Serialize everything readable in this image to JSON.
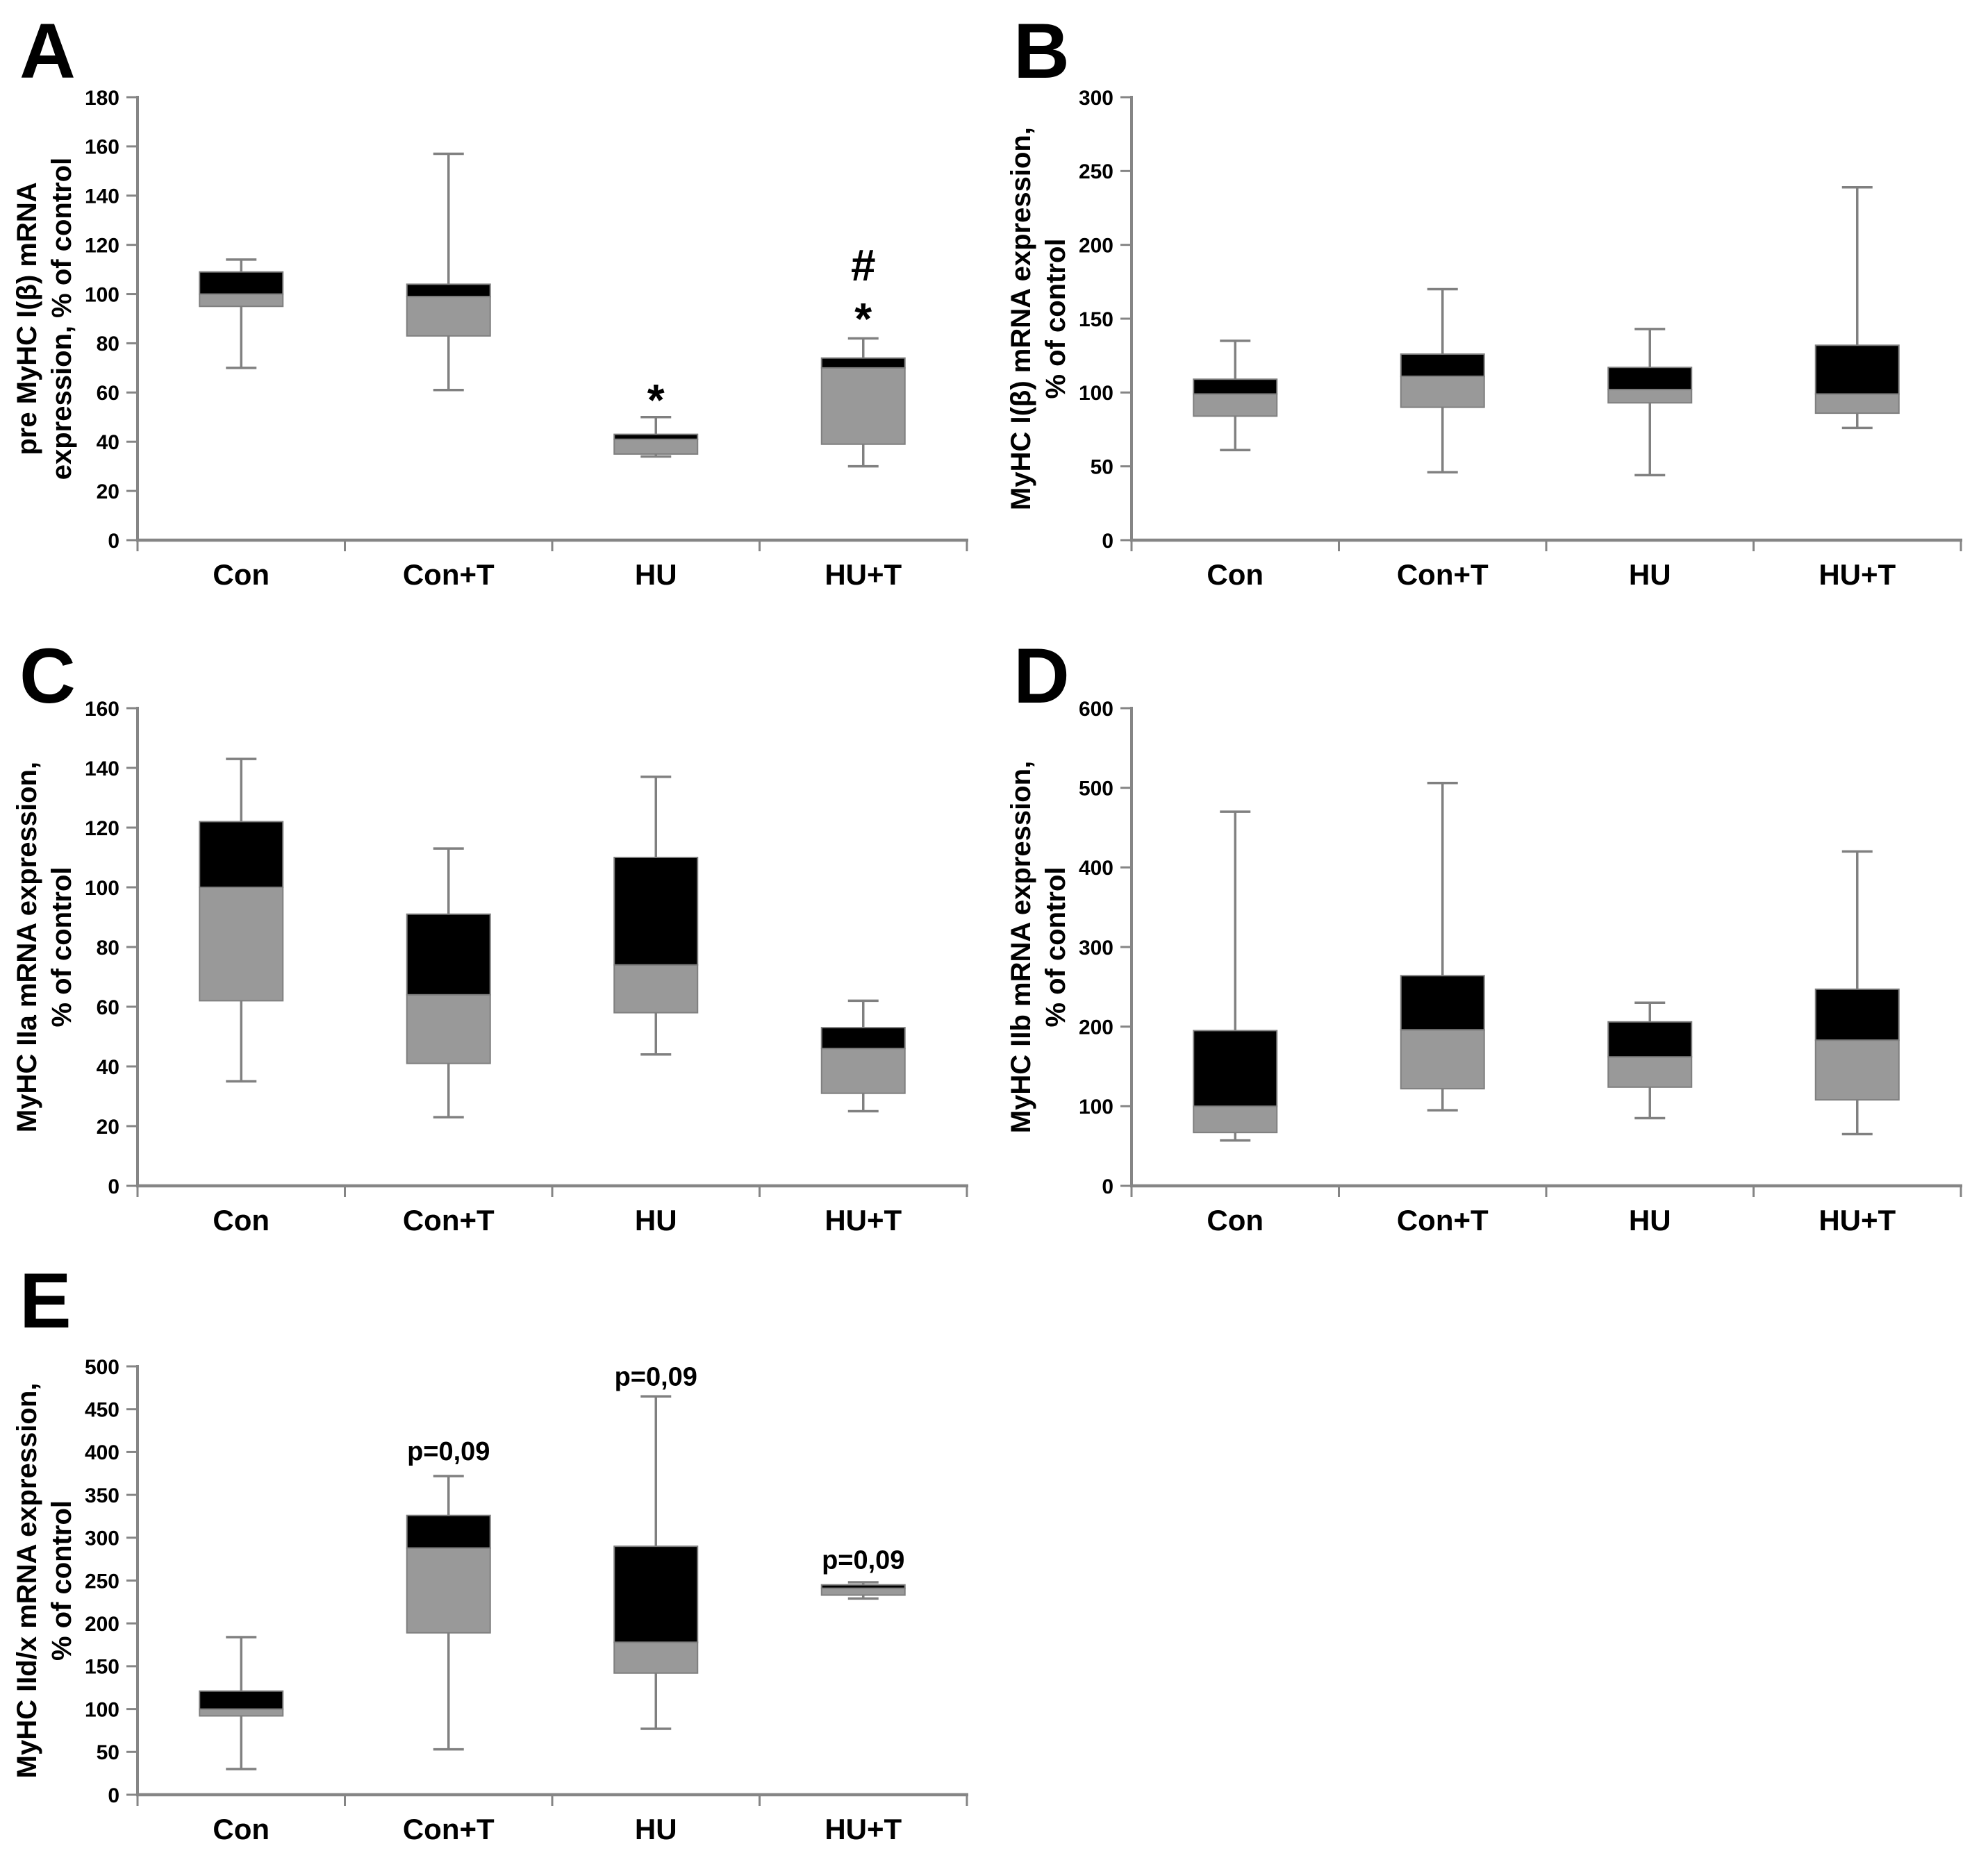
{
  "figure": {
    "background": "#ffffff",
    "colors": {
      "box_upper_fill": "#000000",
      "box_lower_fill": "#999999",
      "box_outline": "#7f7f7f",
      "whisker": "#808080",
      "axis": "#858585",
      "text": "#000000"
    }
  },
  "chart_data": [
    {
      "type": "box",
      "panel": "A",
      "ylabel": "pre MyHC I(β) mRNA expression, % of control",
      "ylabel_lines": [
        "pre MyHC I(β) mRNA",
        "expression, % of control"
      ],
      "ylim": [
        0,
        180
      ],
      "ystep": 20,
      "yticks": [
        "0",
        "20",
        "40",
        "60",
        "80",
        "100",
        "120",
        "140",
        "160",
        "180"
      ],
      "grid": false,
      "categories": [
        "Con",
        "Con+T",
        "HU",
        "HU+T"
      ],
      "boxes": [
        {
          "category": "Con",
          "whisker_low": 70,
          "q1": 95,
          "median": 100,
          "q3": 109,
          "whisker_high": 114
        },
        {
          "category": "Con+T",
          "whisker_low": 61,
          "q1": 83,
          "median": 99,
          "q3": 104,
          "whisker_high": 157
        },
        {
          "category": "HU",
          "whisker_low": 34,
          "q1": 35,
          "median": 41,
          "q3": 43,
          "whisker_high": 50
        },
        {
          "category": "HU+T",
          "whisker_low": 30,
          "q1": 39,
          "median": 70,
          "q3": 74,
          "whisker_high": 82
        }
      ],
      "annotations": [
        {
          "text": "*",
          "category": "HU",
          "y_value": 60,
          "font_size": 64
        },
        {
          "text": "#",
          "category": "HU+T",
          "y_value": 112,
          "font_size": 64
        },
        {
          "text": "*",
          "category": "HU+T",
          "y_value": 93,
          "font_size": 64
        }
      ]
    },
    {
      "type": "box",
      "panel": "B",
      "ylabel": "MyHC I(β) mRNA expression, % of control",
      "ylabel_lines": [
        "MyHC I(β) mRNA expression,",
        "% of control"
      ],
      "ylim": [
        0,
        300
      ],
      "ystep": 50,
      "yticks": [
        "0",
        "50",
        "100",
        "150",
        "200",
        "250",
        "300"
      ],
      "grid": false,
      "categories": [
        "Con",
        "Con+T",
        "HU",
        "HU+T"
      ],
      "boxes": [
        {
          "category": "Con",
          "whisker_low": 61,
          "q1": 84,
          "median": 99,
          "q3": 109,
          "whisker_high": 135
        },
        {
          "category": "Con+T",
          "whisker_low": 46,
          "q1": 90,
          "median": 111,
          "q3": 126,
          "whisker_high": 170
        },
        {
          "category": "HU",
          "whisker_low": 44,
          "q1": 93,
          "median": 102,
          "q3": 117,
          "whisker_high": 143
        },
        {
          "category": "HU+T",
          "whisker_low": 76,
          "q1": 86,
          "median": 99,
          "q3": 132,
          "whisker_high": 239
        }
      ],
      "annotations": []
    },
    {
      "type": "box",
      "panel": "C",
      "ylabel": "MyHC IIa mRNA expression, % of control",
      "ylabel_lines": [
        "MyHC IIa mRNA expression,",
        "% of control"
      ],
      "ylim": [
        0,
        160
      ],
      "ystep": 20,
      "yticks": [
        "0",
        "20",
        "40",
        "60",
        "80",
        "100",
        "120",
        "140",
        "160"
      ],
      "grid": false,
      "categories": [
        "Con",
        "Con+T",
        "HU",
        "HU+T"
      ],
      "boxes": [
        {
          "category": "Con",
          "whisker_low": 35,
          "q1": 62,
          "median": 100,
          "q3": 122,
          "whisker_high": 143
        },
        {
          "category": "Con+T",
          "whisker_low": 23,
          "q1": 41,
          "median": 64,
          "q3": 91,
          "whisker_high": 113
        },
        {
          "category": "HU",
          "whisker_low": 44,
          "q1": 58,
          "median": 74,
          "q3": 110,
          "whisker_high": 137
        },
        {
          "category": "HU+T",
          "whisker_low": 25,
          "q1": 31,
          "median": 46,
          "q3": 53,
          "whisker_high": 62
        }
      ],
      "annotations": []
    },
    {
      "type": "box",
      "panel": "D",
      "ylabel": "MyHC IIb mRNA expression, % of control",
      "ylabel_lines": [
        "MyHC IIb mRNA expression,",
        "% of control"
      ],
      "ylim": [
        0,
        600
      ],
      "ystep": 100,
      "yticks": [
        "0",
        "100",
        "200",
        "300",
        "400",
        "500",
        "600"
      ],
      "grid": false,
      "categories": [
        "Con",
        "Con+T",
        "HU",
        "HU+T"
      ],
      "boxes": [
        {
          "category": "Con",
          "whisker_low": 57,
          "q1": 67,
          "median": 100,
          "q3": 195,
          "whisker_high": 470
        },
        {
          "category": "Con+T",
          "whisker_low": 95,
          "q1": 122,
          "median": 196,
          "q3": 264,
          "whisker_high": 506
        },
        {
          "category": "HU",
          "whisker_low": 85,
          "q1": 124,
          "median": 162,
          "q3": 206,
          "whisker_high": 230
        },
        {
          "category": "HU+T",
          "whisker_low": 65,
          "q1": 108,
          "median": 183,
          "q3": 247,
          "whisker_high": 420
        }
      ],
      "annotations": []
    },
    {
      "type": "box",
      "panel": "E",
      "ylabel": "MyHC IId/x mRNA expression, % of control",
      "ylabel_lines": [
        "MyHC IId/x  mRNA expression,",
        "% of control"
      ],
      "ylim": [
        0,
        500
      ],
      "ystep": 50,
      "yticks": [
        "0",
        "50",
        "100",
        "150",
        "200",
        "250",
        "300",
        "350",
        "400",
        "450",
        "500"
      ],
      "grid": false,
      "categories": [
        "Con",
        "Con+T",
        "HU",
        "HU+T"
      ],
      "boxes": [
        {
          "category": "Con",
          "whisker_low": 30,
          "q1": 92,
          "median": 100,
          "q3": 121,
          "whisker_high": 184
        },
        {
          "category": "Con+T",
          "whisker_low": 53,
          "q1": 189,
          "median": 288,
          "q3": 326,
          "whisker_high": 372
        },
        {
          "category": "HU",
          "whisker_low": 77,
          "q1": 142,
          "median": 178,
          "q3": 290,
          "whisker_high": 465
        },
        {
          "category": "HU+T",
          "whisker_low": 229,
          "q1": 233,
          "median": 241,
          "q3": 245,
          "whisker_high": 248
        }
      ],
      "annotations": [
        {
          "text": "p=0,09",
          "category": "Con+T",
          "y_value": 400,
          "font_size": 38
        },
        {
          "text": "p=0,09",
          "category": "HU",
          "y_value": 487,
          "font_size": 38
        },
        {
          "text": "p=0,09",
          "category": "HU+T",
          "y_value": 273,
          "font_size": 38
        }
      ]
    }
  ]
}
